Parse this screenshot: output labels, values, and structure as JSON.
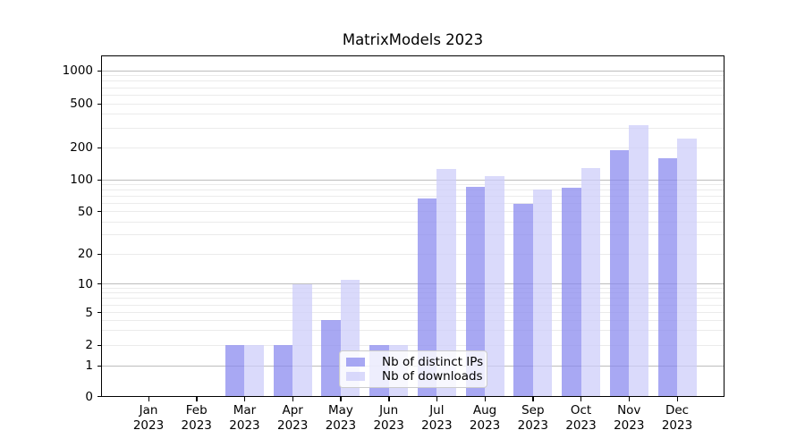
{
  "chart_data": {
    "type": "bar",
    "title": "MatrixModels 2023",
    "x_year": "2023",
    "months": [
      "Jan",
      "Feb",
      "Mar",
      "Apr",
      "May",
      "Jun",
      "Jul",
      "Aug",
      "Sep",
      "Oct",
      "Nov",
      "Dec"
    ],
    "series": [
      {
        "name": "Nb of distinct IPs",
        "color": "#8888ee",
        "values": [
          0,
          0,
          2,
          2,
          4,
          2,
          67,
          85,
          59,
          84,
          190,
          158
        ]
      },
      {
        "name": "Nb of downloads",
        "color": "#ccccfa",
        "values": [
          0,
          0,
          2,
          10,
          11,
          2,
          126,
          108,
          81,
          128,
          320,
          240
        ]
      }
    ],
    "yticks": [
      0,
      1,
      2,
      5,
      10,
      20,
      50,
      100,
      200,
      500,
      1000
    ],
    "yscale": "log-like with 0 baseline",
    "ylim": [
      0,
      1500
    ],
    "grid": {
      "axis": "y",
      "major_color": "#bdbdbd",
      "minor_color": "#ebebeb"
    },
    "legend": {
      "position": "lower center"
    }
  }
}
